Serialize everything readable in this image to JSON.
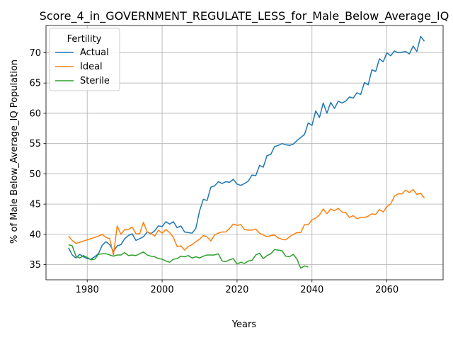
{
  "chart_data": {
    "type": "line",
    "title": "Score_4_in_GOVERNMENT_REGULATE_LESS_for_Male_Below_Average_IQ",
    "xlabel": "Years",
    "ylabel": "% of Male Below_Average_IQ Population",
    "xlim": [
      1969,
      2075
    ],
    "ylim": [
      32.5,
      74.5
    ],
    "xticks": [
      1980,
      2000,
      2020,
      2040,
      2060
    ],
    "yticks": [
      35,
      40,
      45,
      50,
      55,
      60,
      65,
      70
    ],
    "grid": true,
    "legend": {
      "title": "Fertility",
      "placement": "top-left"
    },
    "series": [
      {
        "name": "Actual",
        "color": "#1f77b4",
        "x": [
          1975,
          1976,
          1977,
          1978,
          1979,
          1980,
          1981,
          1982,
          1983,
          1984,
          1985,
          1986,
          1987,
          1988,
          1989,
          1990,
          1991,
          1992,
          1993,
          1994,
          1995,
          1996,
          1997,
          1998,
          1999,
          2000,
          2001,
          2002,
          2003,
          2004,
          2005,
          2006,
          2007,
          2008,
          2009,
          2010,
          2011,
          2012,
          2013,
          2014,
          2015,
          2016,
          2017,
          2018,
          2019,
          2020,
          2021,
          2022,
          2023,
          2024,
          2025,
          2026,
          2027,
          2028,
          2029,
          2030,
          2031,
          2032,
          2033,
          2034,
          2035,
          2036,
          2037,
          2038,
          2039,
          2040,
          2041,
          2042,
          2043,
          2044,
          2045,
          2046,
          2047,
          2048,
          2049,
          2050,
          2051,
          2052,
          2053,
          2054,
          2055,
          2056,
          2057,
          2058,
          2059,
          2060,
          2061,
          2062,
          2063,
          2064,
          2065,
          2066,
          2067,
          2068,
          2069,
          2070
        ],
        "y": [
          37.8,
          36.6,
          36.1,
          36.7,
          36.3,
          36.0,
          35.9,
          36.3,
          36.8,
          38.2,
          38.8,
          38.3,
          37.2,
          38.1,
          38.3,
          39.3,
          39.8,
          40.1,
          39.0,
          39.3,
          39.6,
          40.4,
          40.1,
          40.6,
          41.4,
          41.3,
          42.1,
          41.7,
          42.1,
          41.1,
          41.4,
          40.4,
          40.3,
          40.2,
          41.0,
          43.9,
          45.8,
          45.6,
          47.8,
          48.0,
          48.7,
          48.4,
          48.7,
          48.6,
          49.1,
          48.3,
          48.1,
          48.4,
          48.8,
          49.8,
          49.7,
          51.4,
          51.1,
          53.0,
          53.2,
          54.5,
          54.7,
          55.0,
          54.8,
          54.7,
          54.9,
          55.5,
          56.0,
          56.5,
          58.4,
          58.0,
          60.4,
          59.3,
          61.7,
          60.0,
          61.8,
          60.8,
          62.0,
          61.7,
          62.0,
          62.7,
          62.5,
          63.4,
          63.1,
          65.1,
          64.7,
          67.2,
          66.9,
          69.0,
          68.5,
          70.0,
          69.5,
          70.3,
          70.0,
          70.1,
          70.2,
          69.8,
          71.1,
          70.2,
          72.7,
          71.9
        ]
      },
      {
        "name": "Ideal",
        "color": "#ff7f0e",
        "x": [
          1975,
          1976,
          1977,
          1978,
          1979,
          1980,
          1981,
          1982,
          1983,
          1984,
          1985,
          1986,
          1987,
          1988,
          1989,
          1990,
          1991,
          1992,
          1993,
          1994,
          1995,
          1996,
          1997,
          1998,
          1999,
          2000,
          2001,
          2002,
          2003,
          2004,
          2005,
          2006,
          2007,
          2008,
          2009,
          2010,
          2011,
          2012,
          2013,
          2014,
          2015,
          2016,
          2017,
          2018,
          2019,
          2020,
          2021,
          2022,
          2023,
          2024,
          2025,
          2026,
          2027,
          2028,
          2029,
          2030,
          2031,
          2032,
          2033,
          2034,
          2035,
          2036,
          2037,
          2038,
          2039,
          2040,
          2041,
          2042,
          2043,
          2044,
          2045,
          2046,
          2047,
          2048,
          2049,
          2050,
          2051,
          2052,
          2053,
          2054,
          2055,
          2056,
          2057,
          2058,
          2059,
          2060,
          2061,
          2062,
          2063,
          2064,
          2065,
          2066,
          2067,
          2068,
          2069,
          2070
        ],
        "y": [
          39.7,
          39.0,
          38.5,
          38.7,
          38.9,
          39.1,
          39.3,
          39.5,
          39.7,
          40.0,
          39.5,
          39.3,
          36.6,
          41.4,
          40.0,
          40.8,
          40.8,
          41.2,
          40.1,
          40.1,
          42.0,
          40.4,
          40.2,
          39.7,
          40.7,
          40.2,
          40.8,
          40.3,
          39.5,
          38.0,
          38.1,
          37.4,
          38.0,
          38.3,
          38.8,
          39.2,
          39.8,
          39.6,
          38.9,
          39.9,
          40.2,
          40.4,
          40.4,
          41.0,
          41.7,
          41.5,
          41.6,
          40.8,
          40.7,
          40.7,
          40.9,
          40.2,
          39.9,
          39.6,
          39.8,
          39.9,
          39.4,
          39.2,
          39.1,
          39.6,
          40.0,
          40.3,
          40.3,
          41.6,
          41.6,
          42.4,
          42.7,
          43.2,
          44.2,
          43.4,
          44.2,
          43.9,
          44.3,
          43.7,
          43.6,
          42.8,
          43.1,
          42.6,
          42.8,
          42.8,
          43.0,
          43.4,
          43.3,
          44.1,
          43.7,
          44.6,
          45.0,
          46.3,
          46.7,
          46.7,
          47.3,
          46.9,
          47.4,
          46.6,
          46.8,
          46.0
        ]
      },
      {
        "name": "Sterile",
        "color": "#2ca02c",
        "x": [
          1975,
          1976,
          1977,
          1978,
          1979,
          1980,
          1981,
          1982,
          1983,
          1984,
          1985,
          1986,
          1987,
          1988,
          1989,
          1990,
          1991,
          1992,
          1993,
          1994,
          1995,
          1996,
          1997,
          1998,
          1999,
          2000,
          2001,
          2002,
          2003,
          2004,
          2005,
          2006,
          2007,
          2008,
          2009,
          2010,
          2011,
          2012,
          2013,
          2014,
          2015,
          2016,
          2017,
          2018,
          2019,
          2020,
          2021,
          2022,
          2023,
          2024,
          2025,
          2026,
          2027,
          2028,
          2029,
          2030,
          2031,
          2032,
          2033,
          2034,
          2035,
          2036,
          2037,
          2038,
          2039
        ],
        "y": [
          38.3,
          38.1,
          36.4,
          36.1,
          36.5,
          36.2,
          35.8,
          35.9,
          36.7,
          36.8,
          36.8,
          36.6,
          36.4,
          36.6,
          36.6,
          37.0,
          36.5,
          36.6,
          36.5,
          36.8,
          37.1,
          36.6,
          36.4,
          36.3,
          36.0,
          35.9,
          35.6,
          35.4,
          35.9,
          36.0,
          36.4,
          36.3,
          36.5,
          36.1,
          36.3,
          36.1,
          36.4,
          36.6,
          36.6,
          36.6,
          36.8,
          35.6,
          35.5,
          35.8,
          36.0,
          35.1,
          35.4,
          35.2,
          35.6,
          35.7,
          36.6,
          36.9,
          36.0,
          36.5,
          36.8,
          37.5,
          37.4,
          37.3,
          36.4,
          36.3,
          36.7,
          35.9,
          34.4,
          34.8,
          34.6
        ]
      }
    ]
  }
}
